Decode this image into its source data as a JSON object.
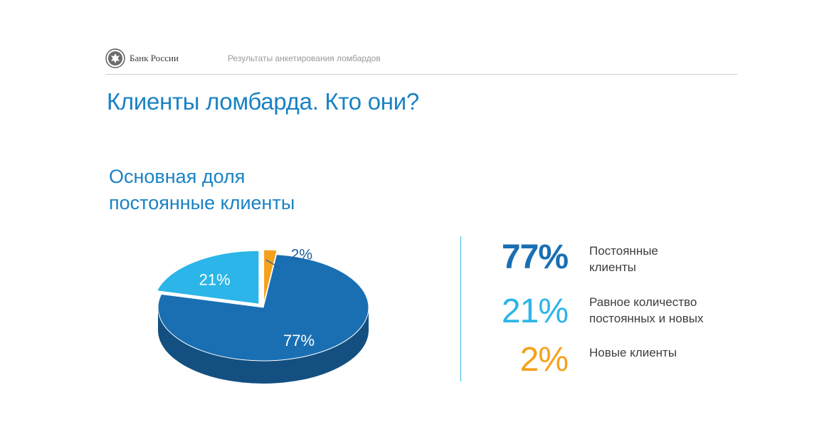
{
  "header": {
    "bank_name": "Банк России",
    "subtitle": "Результаты анкетирования ломбардов"
  },
  "page_title": "Клиенты ломбарда. Кто они?",
  "headline": {
    "line1": "Основная доля",
    "line2": "постоянные клиенты"
  },
  "colors": {
    "accent": "#1a82c4",
    "dark_blue": "#1a6fb3",
    "light_blue": "#2bb5e8",
    "orange": "#f5a11c"
  },
  "chart_data": {
    "type": "pie",
    "categories": [
      "Постоянные клиенты",
      "Равное количество постоянных и новых",
      "Новые клиенты"
    ],
    "values": [
      77,
      21,
      2
    ],
    "data_labels": [
      "77%",
      "21%",
      "2%"
    ],
    "colors": [
      "#1a6fb3",
      "#2bb5e8",
      "#f5a11c"
    ],
    "exploded": [
      false,
      true,
      true
    ]
  },
  "legend": [
    {
      "value": "77%",
      "label_line1": "Постоянные",
      "label_line2": "клиенты",
      "color": "#1a6fb3"
    },
    {
      "value": "21%",
      "label_line1": "Равное количество",
      "label_line2": "постоянных и новых",
      "color": "#2bb5e8"
    },
    {
      "value": "2%",
      "label_line1": "Новые клиенты",
      "label_line2": "",
      "color": "#f5a11c"
    }
  ]
}
